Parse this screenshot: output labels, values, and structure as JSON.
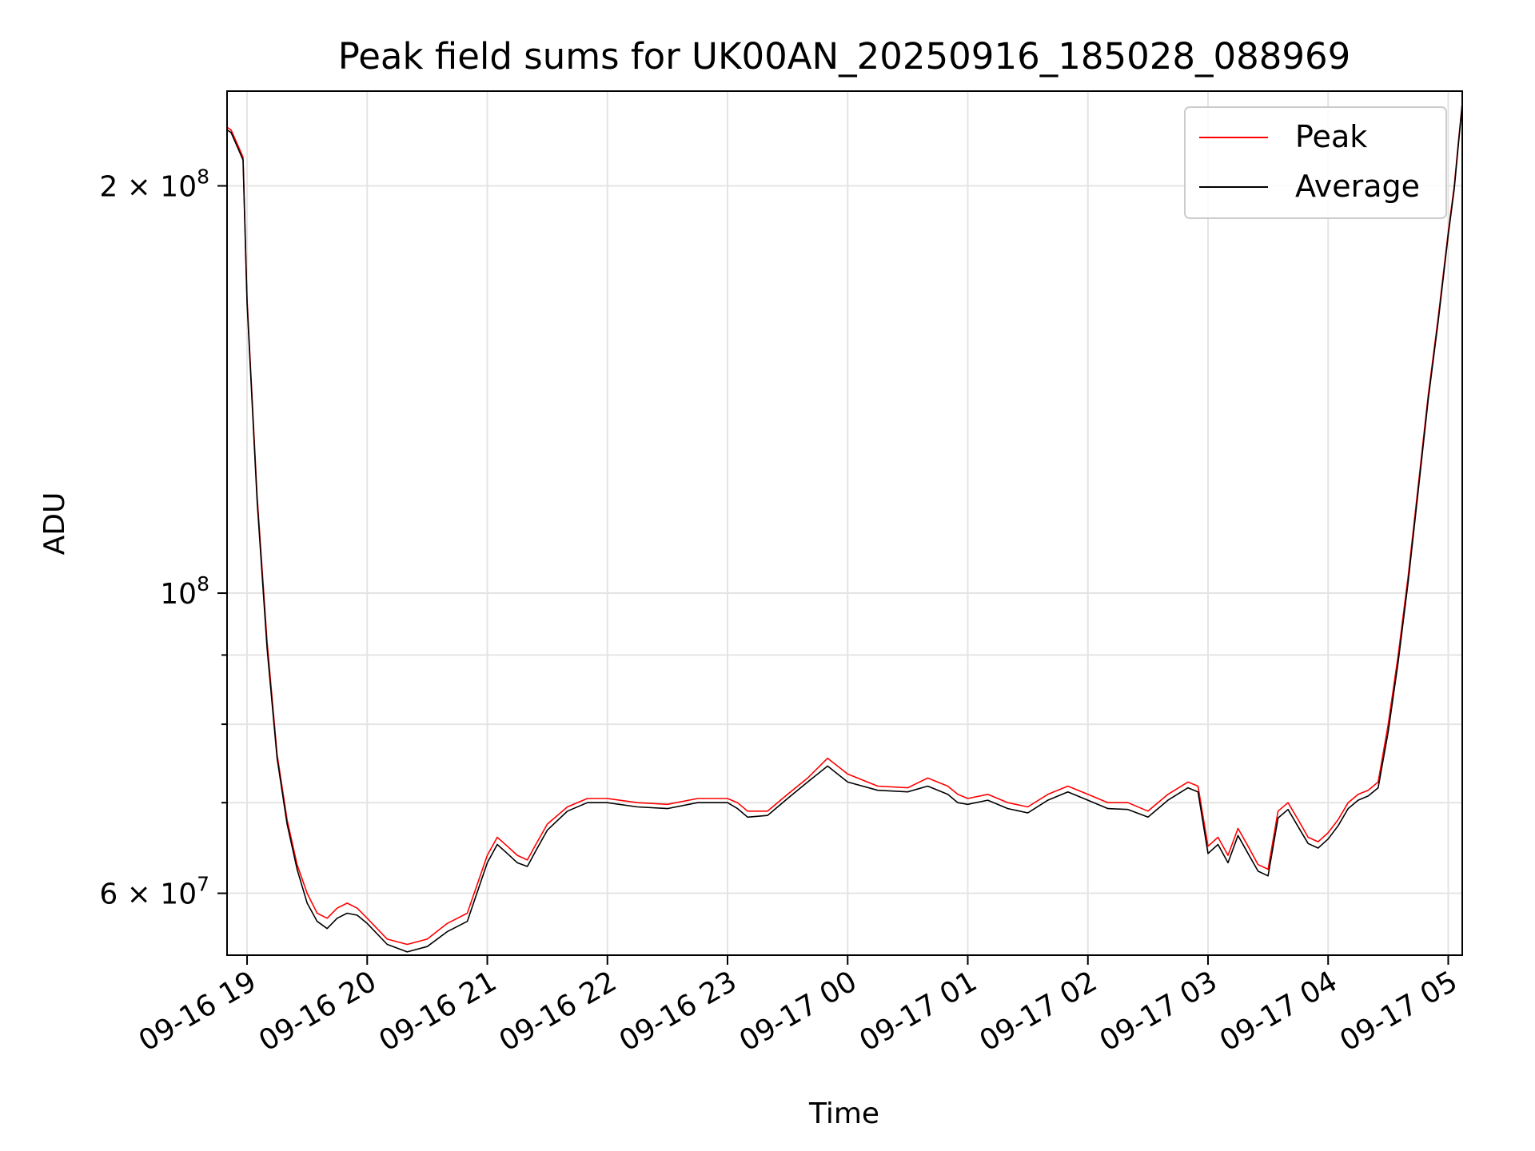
{
  "chart_data": {
    "type": "line",
    "title": "Peak field sums for UK00AN_20250916_185028_088969",
    "xlabel": "Time",
    "ylabel": "ADU",
    "y_scale": "log",
    "ylim": [
      54000000,
      235000000
    ],
    "xlim": [
      "09-16 18:50",
      "09-17 05:07"
    ],
    "grid": true,
    "legend_position": "top-right",
    "x_ticks": [
      "09-16 19",
      "09-16 20",
      "09-16 21",
      "09-16 22",
      "09-16 23",
      "09-17 00",
      "09-17 01",
      "09-17 02",
      "09-17 03",
      "09-17 04",
      "09-17 05"
    ],
    "y_ticks": [
      {
        "value": 60000000,
        "base": "6 × 10",
        "exp": "7"
      },
      {
        "value": 100000000,
        "base": "10",
        "exp": "8"
      },
      {
        "value": 200000000,
        "base": "2 × 10",
        "exp": "8"
      }
    ],
    "y_minor_ticks": [
      70000000,
      80000000,
      90000000
    ],
    "x": [
      "09-16 18:50",
      "09-16 18:52",
      "09-16 18:55",
      "09-16 18:58",
      "09-16 19:00",
      "09-16 19:05",
      "09-16 19:10",
      "09-16 19:15",
      "09-16 19:20",
      "09-16 19:25",
      "09-16 19:30",
      "09-16 19:35",
      "09-16 19:40",
      "09-16 19:45",
      "09-16 19:50",
      "09-16 19:55",
      "09-16 20:00",
      "09-16 20:10",
      "09-16 20:20",
      "09-16 20:30",
      "09-16 20:40",
      "09-16 20:50",
      "09-16 21:00",
      "09-16 21:05",
      "09-16 21:10",
      "09-16 21:15",
      "09-16 21:20",
      "09-16 21:25",
      "09-16 21:30",
      "09-16 21:40",
      "09-16 21:50",
      "09-16 22:00",
      "09-16 22:15",
      "09-16 22:30",
      "09-16 22:45",
      "09-16 23:00",
      "09-16 23:05",
      "09-16 23:10",
      "09-16 23:20",
      "09-16 23:30",
      "09-16 23:40",
      "09-16 23:50",
      "09-17 00:00",
      "09-17 00:15",
      "09-17 00:30",
      "09-17 00:40",
      "09-17 00:50",
      "09-17 00:55",
      "09-17 01:00",
      "09-17 01:10",
      "09-17 01:20",
      "09-17 01:30",
      "09-17 01:40",
      "09-17 01:50",
      "09-17 02:00",
      "09-17 02:10",
      "09-17 02:20",
      "09-17 02:30",
      "09-17 02:40",
      "09-17 02:50",
      "09-17 02:55",
      "09-17 03:00",
      "09-17 03:05",
      "09-17 03:10",
      "09-17 03:15",
      "09-17 03:20",
      "09-17 03:25",
      "09-17 03:30",
      "09-17 03:35",
      "09-17 03:40",
      "09-17 03:45",
      "09-17 03:50",
      "09-17 03:55",
      "09-17 04:00",
      "09-17 04:05",
      "09-17 04:10",
      "09-17 04:15",
      "09-17 04:20",
      "09-17 04:25",
      "09-17 04:30",
      "09-17 04:35",
      "09-17 04:40",
      "09-17 04:45",
      "09-17 04:50",
      "09-17 04:55",
      "09-17 05:00",
      "09-17 05:03",
      "09-17 05:05",
      "09-17 05:07"
    ],
    "series": [
      {
        "name": "Peak",
        "color": "#ff0000",
        "values": [
          221000000,
          220000000,
          215000000,
          210000000,
          165000000,
          118000000,
          92000000,
          76000000,
          68000000,
          63000000,
          60000000,
          58000000,
          57500000,
          58500000,
          59000000,
          58500000,
          57500000,
          55500000,
          55000000,
          55500000,
          57000000,
          58000000,
          64000000,
          66000000,
          65000000,
          64000000,
          63500000,
          65500000,
          67500000,
          69500000,
          70500000,
          70500000,
          70000000,
          69800000,
          70500000,
          70500000,
          70000000,
          69000000,
          69000000,
          71000000,
          73000000,
          75500000,
          73500000,
          72000000,
          71800000,
          73000000,
          72000000,
          71000000,
          70500000,
          71000000,
          70000000,
          69500000,
          71000000,
          72000000,
          71000000,
          70000000,
          70000000,
          69000000,
          71000000,
          72500000,
          72000000,
          65000000,
          66000000,
          64000000,
          67000000,
          65000000,
          63000000,
          62500000,
          69000000,
          70000000,
          68000000,
          66000000,
          65500000,
          66500000,
          68000000,
          70000000,
          71000000,
          71500000,
          72500000,
          80000000,
          90000000,
          103000000,
          120000000,
          140000000,
          160000000,
          185000000,
          200000000,
          215000000,
          230000000
        ]
      },
      {
        "name": "Average",
        "color": "#000000",
        "values": [
          220000000,
          219000000,
          214000000,
          209000000,
          164000000,
          117000000,
          91000000,
          75500000,
          67500000,
          62500000,
          59000000,
          57200000,
          56500000,
          57500000,
          58000000,
          57800000,
          57000000,
          55000000,
          54300000,
          54800000,
          56200000,
          57200000,
          63200000,
          65200000,
          64200000,
          63200000,
          62800000,
          64800000,
          66800000,
          69000000,
          70000000,
          70000000,
          69500000,
          69300000,
          70000000,
          70000000,
          69300000,
          68300000,
          68500000,
          70500000,
          72500000,
          74500000,
          72500000,
          71500000,
          71300000,
          72000000,
          71000000,
          70000000,
          69800000,
          70300000,
          69300000,
          68800000,
          70300000,
          71300000,
          70300000,
          69300000,
          69200000,
          68300000,
          70300000,
          71800000,
          71300000,
          64200000,
          65200000,
          63200000,
          66200000,
          64200000,
          62300000,
          61800000,
          68200000,
          69200000,
          67200000,
          65300000,
          64800000,
          65800000,
          67300000,
          69300000,
          70300000,
          70800000,
          71800000,
          79000000,
          89000000,
          102000000,
          119000000,
          139000000,
          159000000,
          184000000,
          199000000,
          214000000,
          230000000
        ]
      }
    ]
  }
}
